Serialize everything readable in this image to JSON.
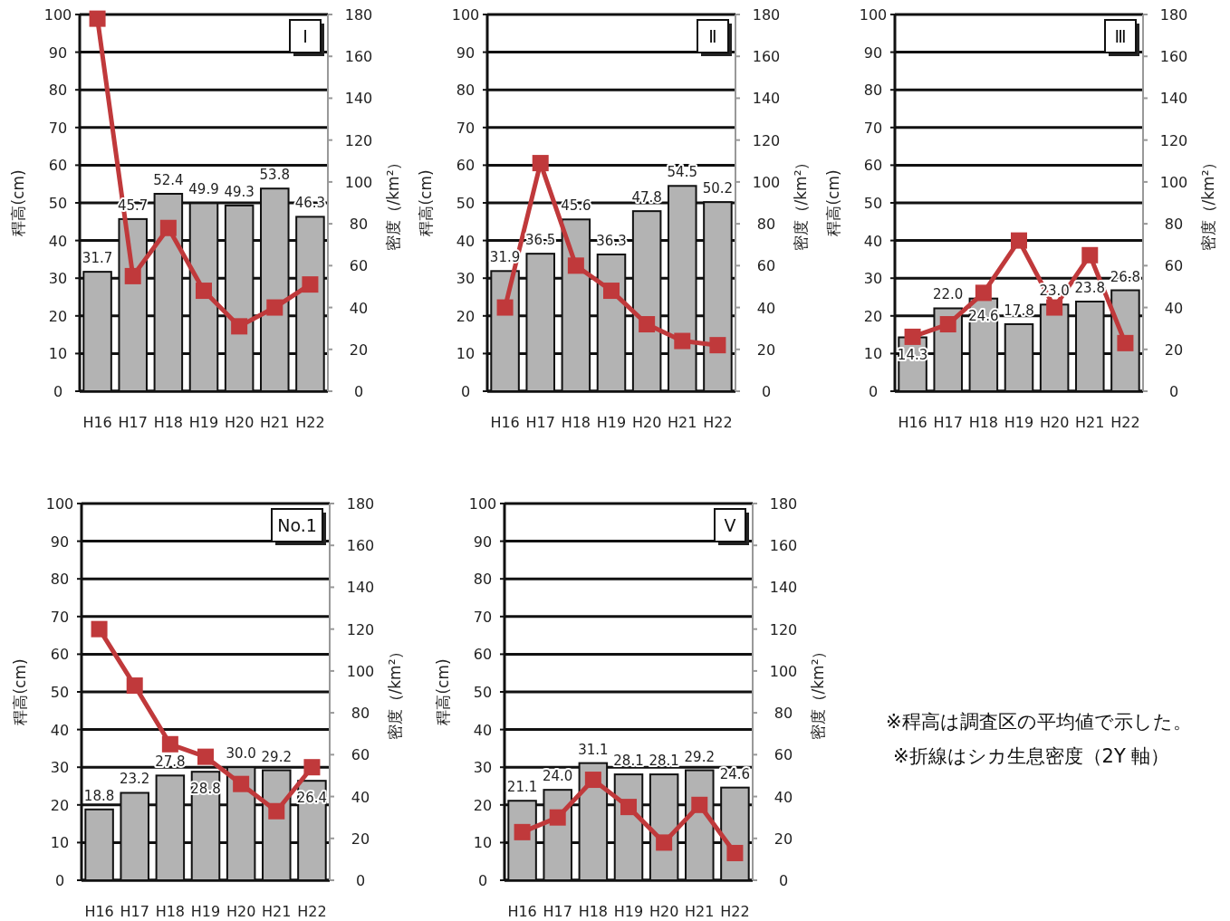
{
  "chart_data": [
    {
      "type": "bar",
      "title": "Ⅰ",
      "categories": [
        "H16",
        "H17",
        "H18",
        "H19",
        "H20",
        "H21",
        "H22"
      ],
      "ylabel": "稈高(cm)",
      "y2label": "密度（/km²）",
      "ylim": [
        0,
        100
      ],
      "yticks": [
        0,
        10,
        20,
        30,
        40,
        50,
        60,
        70,
        80,
        90,
        100
      ],
      "y2lim": [
        0,
        180
      ],
      "y2ticks": [
        0,
        20,
        40,
        60,
        80,
        100,
        120,
        140,
        160,
        180
      ],
      "grid": "y",
      "series": [
        {
          "type": "bar",
          "color": "#b3b3b3",
          "values": [
            31.7,
            45.7,
            52.4,
            49.9,
            49.3,
            53.8,
            46.3
          ],
          "value_labels": [
            "31.7",
            "45.7",
            "52.4",
            "49.9",
            "49.3",
            "53.8",
            "46.3"
          ]
        },
        {
          "type": "line",
          "axis": "y2",
          "color": "#c0393b",
          "marker": "square",
          "values": [
            178,
            55,
            78,
            48,
            31,
            40,
            51
          ]
        }
      ]
    },
    {
      "type": "bar",
      "title": "Ⅱ",
      "categories": [
        "H16",
        "H17",
        "H18",
        "H19",
        "H20",
        "H21",
        "H22"
      ],
      "ylabel": "稈高(cm)",
      "y2label": "密度（/km²）",
      "ylim": [
        0,
        100
      ],
      "yticks": [
        0,
        10,
        20,
        30,
        40,
        50,
        60,
        70,
        80,
        90,
        100
      ],
      "y2lim": [
        0,
        180
      ],
      "y2ticks": [
        0,
        20,
        40,
        60,
        80,
        100,
        120,
        140,
        160,
        180
      ],
      "grid": "y",
      "series": [
        {
          "type": "bar",
          "color": "#b3b3b3",
          "values": [
            31.9,
            36.5,
            45.6,
            36.3,
            47.8,
            54.5,
            50.2
          ],
          "value_labels": [
            "31.9",
            "36.5",
            "45.6",
            "36.3",
            "47.8",
            "54.5",
            "50.2"
          ]
        },
        {
          "type": "line",
          "axis": "y2",
          "color": "#c0393b",
          "marker": "square",
          "values": [
            40,
            109,
            60,
            48,
            32,
            24,
            22
          ]
        }
      ]
    },
    {
      "type": "bar",
      "title": "Ⅲ",
      "categories": [
        "H16",
        "H17",
        "H18",
        "H19",
        "H20",
        "H21",
        "H22"
      ],
      "ylabel": "稈高(cm)",
      "y2label": "密度（/km²）",
      "ylim": [
        0,
        100
      ],
      "yticks": [
        0,
        10,
        20,
        30,
        40,
        50,
        60,
        70,
        80,
        90,
        100
      ],
      "y2lim": [
        0,
        180
      ],
      "y2ticks": [
        0,
        20,
        40,
        60,
        80,
        100,
        120,
        140,
        160,
        180
      ],
      "grid": "y",
      "series": [
        {
          "type": "bar",
          "color": "#b3b3b3",
          "values": [
            14.3,
            22.0,
            24.6,
            17.8,
            23.0,
            23.8,
            26.8
          ],
          "value_labels": [
            "14.3",
            "22.0",
            "24.6",
            "17.8",
            "23.0",
            "23.8",
            "26.8"
          ]
        },
        {
          "type": "line",
          "axis": "y2",
          "color": "#c0393b",
          "marker": "square",
          "values": [
            26,
            32,
            47,
            72,
            40,
            65,
            23
          ]
        }
      ]
    },
    {
      "type": "bar",
      "title": "No.1",
      "categories": [
        "H16",
        "H17",
        "H18",
        "H19",
        "H20",
        "H21",
        "H22"
      ],
      "ylabel": "稈高(cm)",
      "y2label": "密度（/km²）",
      "ylim": [
        0,
        100
      ],
      "yticks": [
        0,
        10,
        20,
        30,
        40,
        50,
        60,
        70,
        80,
        90,
        100
      ],
      "y2lim": [
        0,
        180
      ],
      "y2ticks": [
        0,
        20,
        40,
        60,
        80,
        100,
        120,
        140,
        160,
        180
      ],
      "grid": "y",
      "series": [
        {
          "type": "bar",
          "color": "#b3b3b3",
          "values": [
            18.8,
            23.2,
            27.8,
            28.8,
            30.0,
            29.2,
            26.4
          ],
          "value_labels": [
            "18.8",
            "23.2",
            "27.8",
            "28.8",
            "30.0",
            "29.2",
            "26.4"
          ]
        },
        {
          "type": "line",
          "axis": "y2",
          "color": "#c0393b",
          "marker": "square",
          "values": [
            120,
            93,
            65,
            59,
            46,
            33,
            54
          ]
        }
      ]
    },
    {
      "type": "bar",
      "title": "Ⅴ",
      "categories": [
        "H16",
        "H17",
        "H18",
        "H19",
        "H20",
        "H21",
        "H22"
      ],
      "ylabel": "稈高(cm)",
      "y2label": "密度（/km²）",
      "ylim": [
        0,
        100
      ],
      "yticks": [
        0,
        10,
        20,
        30,
        40,
        50,
        60,
        70,
        80,
        90,
        100
      ],
      "y2lim": [
        0,
        180
      ],
      "y2ticks": [
        0,
        20,
        40,
        60,
        80,
        100,
        120,
        140,
        160,
        180
      ],
      "grid": "y",
      "series": [
        {
          "type": "bar",
          "color": "#b3b3b3",
          "values": [
            21.1,
            24.0,
            31.1,
            28.1,
            28.1,
            29.2,
            24.6
          ],
          "value_labels": [
            "21.1",
            "24.0",
            "31.1",
            "28.1",
            "28.1",
            "29.2",
            "24.6"
          ]
        },
        {
          "type": "line",
          "axis": "y2",
          "color": "#c0393b",
          "marker": "square",
          "values": [
            23,
            30,
            48,
            35,
            18,
            36,
            13
          ]
        }
      ]
    },
    {
      "type": "other",
      "annotations": [
        "※稈高は調査区の平均値で示した。",
        "※折線はシカ生息密度（2Y 軸）"
      ]
    }
  ]
}
